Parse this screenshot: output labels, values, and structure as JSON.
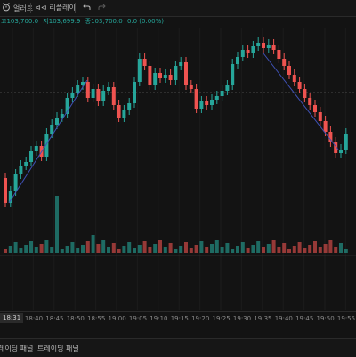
{
  "toolbar": {
    "alert_label": "얼러트",
    "replay_label": "리플레이"
  },
  "legend": {
    "high": "고103,700.0",
    "low": "저103,699.9",
    "close": "종103,700.0",
    "change": "0.0 (0.00%)"
  },
  "price_line_color": "#4a4a4a",
  "up_color": "#26a69a",
  "down_color": "#ef5350",
  "axis": {
    "cursor_label": "18:31",
    "ticks": [
      "18:40",
      "18:45",
      "18:50",
      "18:55",
      "19:00",
      "19:05",
      "19:10",
      "19:15",
      "19:20",
      "19:25",
      "19:30",
      "19:35",
      "19:40",
      "19:45",
      "19:50",
      "19:55"
    ]
  },
  "bottom_tabs": [
    "레이딩 패널",
    "트레이딩 패널"
  ],
  "chart_data": {
    "type": "candlestick",
    "note_series": "price",
    "ylim": [
      0,
      1
    ],
    "volume_ylim": [
      0,
      1
    ]
  }
}
